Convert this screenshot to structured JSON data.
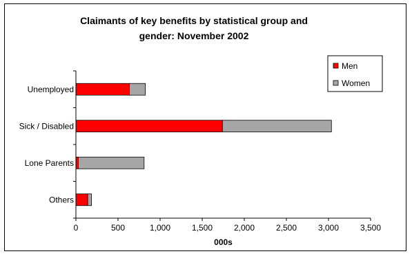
{
  "chart_data": {
    "type": "bar",
    "orientation": "horizontal",
    "stacked": true,
    "title_lines": [
      "Claimants of key benefits by statistical group and",
      "gender: November 2002"
    ],
    "xlabel": "000s",
    "ylabel": "",
    "categories": [
      "Unemployed",
      "Sick / Disabled",
      "Lone Parents",
      "Others"
    ],
    "series": [
      {
        "name": "Men",
        "color": "#ff0000",
        "values": [
          635,
          1740,
          30,
          140
        ]
      },
      {
        "name": "Women",
        "color": "#a6a6a6",
        "values": [
          190,
          1295,
          780,
          45
        ]
      }
    ],
    "xlim": [
      0,
      3500
    ],
    "xticks": [
      0,
      500,
      1000,
      1500,
      2000,
      2500,
      3000,
      3500
    ],
    "xtick_labels": [
      "0",
      "500",
      "1,000",
      "1,500",
      "2,000",
      "2,500",
      "3,000",
      "3,500"
    ],
    "grid": false,
    "legend_position": "top-right"
  }
}
